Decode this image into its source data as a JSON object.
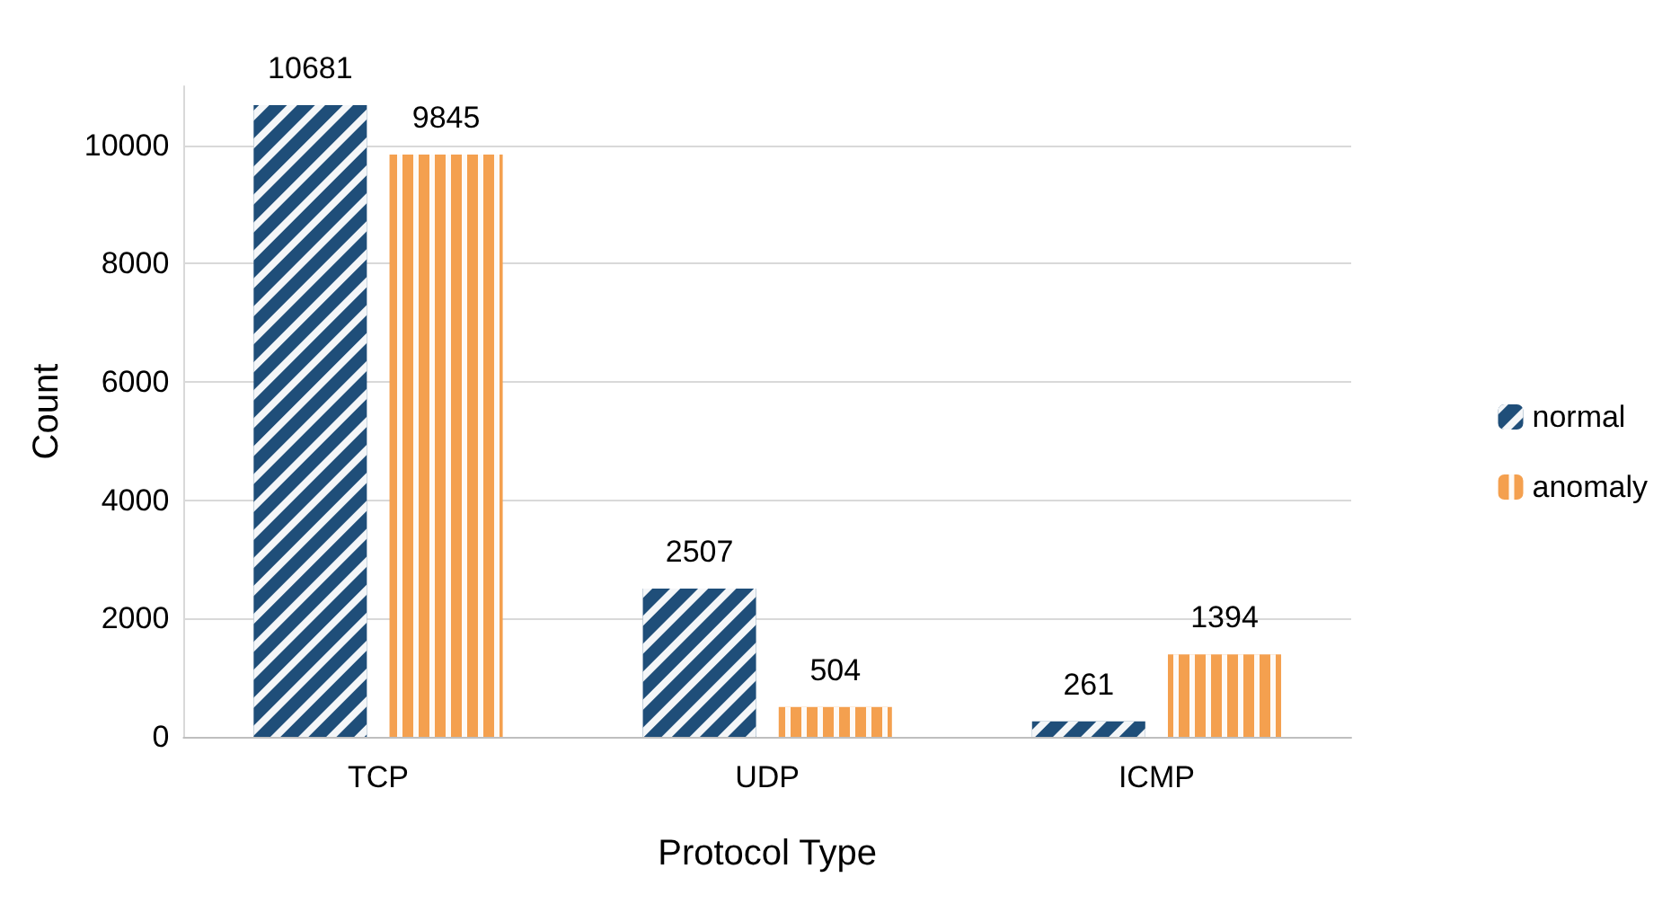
{
  "chart_data": {
    "type": "bar",
    "xlabel": "Protocol Type",
    "ylabel": "Count",
    "categories": [
      "TCP",
      "UDP",
      "ICMP"
    ],
    "series": [
      {
        "name": "normal",
        "color": "#1f4e79",
        "values": [
          10681,
          2507,
          261
        ]
      },
      {
        "name": "anomaly",
        "color": "#f4a04f",
        "values": [
          9845,
          504,
          1394
        ]
      }
    ],
    "ylim": [
      0,
      11000
    ],
    "yticks": [
      0,
      2000,
      4000,
      6000,
      8000,
      10000
    ],
    "grid": "y",
    "legend": "right",
    "data_labels": true
  }
}
